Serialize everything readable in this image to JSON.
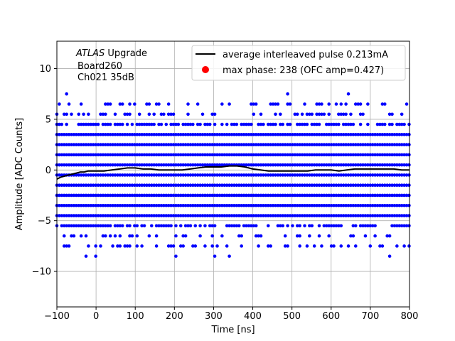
{
  "chart_data": {
    "type": "scatter",
    "xlabel": "Time [ns]",
    "ylabel": "Amplitude [ADC Counts]",
    "xlim": [
      -100,
      800
    ],
    "ylim": [
      -13.5,
      12.7
    ],
    "grid": true,
    "legend_position": "top-right",
    "xticks": [
      -100,
      0,
      100,
      200,
      300,
      400,
      500,
      600,
      700,
      800
    ],
    "yticks": [
      -10,
      -5,
      0,
      5,
      10
    ],
    "annotation": {
      "experiment": "ATLAS",
      "experiment_suffix": " Upgrade",
      "board": "Board260",
      "channel": "Ch021 35dB"
    },
    "legend": [
      {
        "label": "average interleaved pulse 0.213mA",
        "color": "#000000",
        "marker": "line"
      },
      {
        "label": "max phase: 238 (OFC amp=0.427)",
        "color": "#ff0000",
        "marker": "dot"
      }
    ],
    "samples": {
      "color": "#0000ff",
      "x_range": [
        -100,
        800
      ],
      "x_step": 6.2,
      "dense_levels": [
        -4.5,
        -3.5,
        -2.5,
        -1.5,
        -0.5,
        0.5,
        1.5,
        2.5,
        3.5
      ],
      "medium_levels": [
        -5.5,
        4.5
      ],
      "sparse_levels": [
        -7.5,
        -6.5,
        5.5,
        6.5
      ],
      "rare_levels": [
        -8.5,
        7.5
      ]
    },
    "average_pulse": {
      "color": "#000000",
      "x": [
        -100,
        -90,
        -80,
        -70,
        -60,
        -50,
        -40,
        -30,
        -20,
        -10,
        0,
        20,
        40,
        60,
        80,
        100,
        120,
        140,
        160,
        180,
        200,
        220,
        240,
        260,
        280,
        300,
        320,
        340,
        360,
        380,
        400,
        420,
        440,
        460,
        480,
        500,
        520,
        540,
        560,
        580,
        600,
        620,
        640,
        660,
        680,
        700,
        720,
        740,
        760,
        780,
        800
      ],
      "y": [
        -0.9,
        -0.7,
        -0.6,
        -0.5,
        -0.4,
        -0.3,
        -0.2,
        -0.2,
        -0.1,
        -0.1,
        -0.1,
        -0.1,
        0.0,
        0.1,
        0.2,
        0.2,
        0.1,
        0.1,
        0.0,
        0.0,
        0.0,
        0.0,
        0.1,
        0.2,
        0.3,
        0.3,
        0.3,
        0.4,
        0.4,
        0.3,
        0.1,
        0.0,
        -0.1,
        -0.1,
        -0.1,
        -0.1,
        -0.1,
        -0.1,
        0.0,
        0.0,
        0.0,
        -0.1,
        0.0,
        0.1,
        0.1,
        0.1,
        0.1,
        0.1,
        0.1,
        0.0,
        0.0
      ]
    }
  }
}
